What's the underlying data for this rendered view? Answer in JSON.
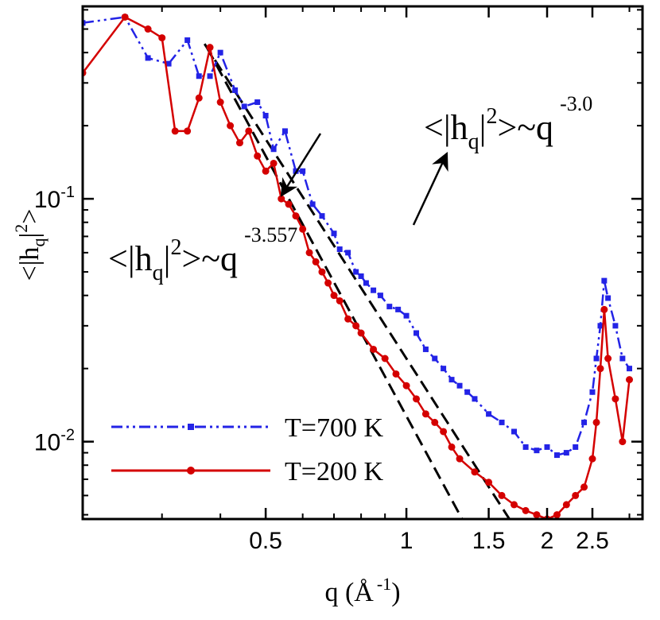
{
  "chart_data": {
    "type": "line",
    "scale": "log-log",
    "xlabel": {
      "prefix": "q (Å",
      "exp": "-1",
      "suffix": ")"
    },
    "ylabel": "<|h_q|^2>",
    "xlim": [
      0.203,
      3.2
    ],
    "ylim": [
      0.0048,
      0.62
    ],
    "x_ticks": [
      {
        "value": 0.5,
        "label": "0.5"
      },
      {
        "value": 1,
        "label": "1"
      },
      {
        "value": 1.5,
        "label": "1.5"
      },
      {
        "value": 2,
        "label": "2"
      },
      {
        "value": 2.5,
        "label": "2.5"
      }
    ],
    "y_ticks": [
      {
        "value": 0.1,
        "base": "10",
        "exp": "-1"
      },
      {
        "value": 0.01,
        "base": "10",
        "exp": "-2"
      }
    ],
    "series": [
      {
        "name": "T=700 K",
        "color": "#2323e6",
        "style": "dash-dot-dot",
        "marker": "square",
        "x": [
          0.203,
          0.25,
          0.28,
          0.31,
          0.34,
          0.36,
          0.38,
          0.4,
          0.43,
          0.45,
          0.48,
          0.5,
          0.52,
          0.55,
          0.58,
          0.6,
          0.63,
          0.66,
          0.7,
          0.72,
          0.75,
          0.78,
          0.8,
          0.82,
          0.85,
          0.88,
          0.92,
          0.96,
          1.0,
          1.05,
          1.1,
          1.15,
          1.2,
          1.25,
          1.3,
          1.35,
          1.4,
          1.5,
          1.6,
          1.7,
          1.8,
          1.9,
          2.0,
          2.1,
          2.2,
          2.3,
          2.4,
          2.5,
          2.55,
          2.6,
          2.65,
          2.7,
          2.8,
          2.9,
          3.0
        ],
        "values": [
          0.53,
          0.56,
          0.38,
          0.36,
          0.45,
          0.32,
          0.32,
          0.4,
          0.28,
          0.24,
          0.25,
          0.22,
          0.16,
          0.19,
          0.13,
          0.13,
          0.095,
          0.085,
          0.072,
          0.062,
          0.06,
          0.05,
          0.048,
          0.045,
          0.042,
          0.04,
          0.036,
          0.035,
          0.033,
          0.028,
          0.024,
          0.022,
          0.02,
          0.018,
          0.017,
          0.016,
          0.015,
          0.013,
          0.012,
          0.011,
          0.0095,
          0.0092,
          0.0095,
          0.0088,
          0.009,
          0.0095,
          0.012,
          0.016,
          0.022,
          0.03,
          0.046,
          0.039,
          0.03,
          0.022,
          0.02
        ]
      },
      {
        "name": "T=200 K",
        "color": "#d40000",
        "style": "solid",
        "marker": "circle",
        "x": [
          0.203,
          0.25,
          0.28,
          0.3,
          0.32,
          0.34,
          0.36,
          0.38,
          0.4,
          0.42,
          0.44,
          0.46,
          0.48,
          0.5,
          0.52,
          0.54,
          0.56,
          0.58,
          0.6,
          0.62,
          0.64,
          0.66,
          0.68,
          0.7,
          0.72,
          0.75,
          0.78,
          0.8,
          0.85,
          0.9,
          0.95,
          1.0,
          1.05,
          1.1,
          1.15,
          1.2,
          1.25,
          1.3,
          1.4,
          1.5,
          1.6,
          1.7,
          1.8,
          1.9,
          2.0,
          2.1,
          2.2,
          2.3,
          2.4,
          2.5,
          2.55,
          2.6,
          2.65,
          2.7,
          2.8,
          2.9,
          3.0
        ],
        "values": [
          0.33,
          0.56,
          0.5,
          0.46,
          0.19,
          0.19,
          0.26,
          0.42,
          0.25,
          0.2,
          0.17,
          0.19,
          0.15,
          0.13,
          0.14,
          0.1,
          0.095,
          0.085,
          0.075,
          0.06,
          0.055,
          0.05,
          0.045,
          0.04,
          0.038,
          0.032,
          0.03,
          0.028,
          0.024,
          0.022,
          0.019,
          0.017,
          0.015,
          0.013,
          0.012,
          0.011,
          0.0095,
          0.0085,
          0.0075,
          0.0068,
          0.006,
          0.0055,
          0.0052,
          0.005,
          0.0048,
          0.005,
          0.0055,
          0.006,
          0.0065,
          0.0085,
          0.012,
          0.02,
          0.035,
          0.022,
          0.015,
          0.01,
          0.018
        ]
      }
    ],
    "fit_lines": [
      {
        "name": "fit-3.557",
        "style": "dashed",
        "color": "#000000",
        "slope": -3.557,
        "x_range": [
          0.375,
          1.55
        ],
        "anchor": {
          "x": 0.5,
          "y": 0.15
        }
      },
      {
        "name": "fit-3.0",
        "style": "dashed",
        "color": "#000000",
        "slope": -3.0,
        "x_range": [
          0.37,
          2.1
        ],
        "anchor": {
          "x": 0.5,
          "y": 0.176
        }
      }
    ],
    "annotations": [
      {
        "name": "fit-3.557",
        "base": "<|h",
        "sub": "q",
        "mid": "|",
        "sup": "2",
        "tail": ">~q",
        "exp": "-3.557"
      },
      {
        "name": "fit-3.0",
        "base": "<|h",
        "sub": "q",
        "mid": "|",
        "sup": "2",
        "tail": ">~q",
        "exp": "-3.0"
      }
    ],
    "legend": {
      "position": "bottom-left",
      "entries": [
        {
          "label": "T=700 K",
          "series": "T=700 K"
        },
        {
          "label": "T=200 K",
          "series": "T=200 K"
        }
      ]
    }
  }
}
